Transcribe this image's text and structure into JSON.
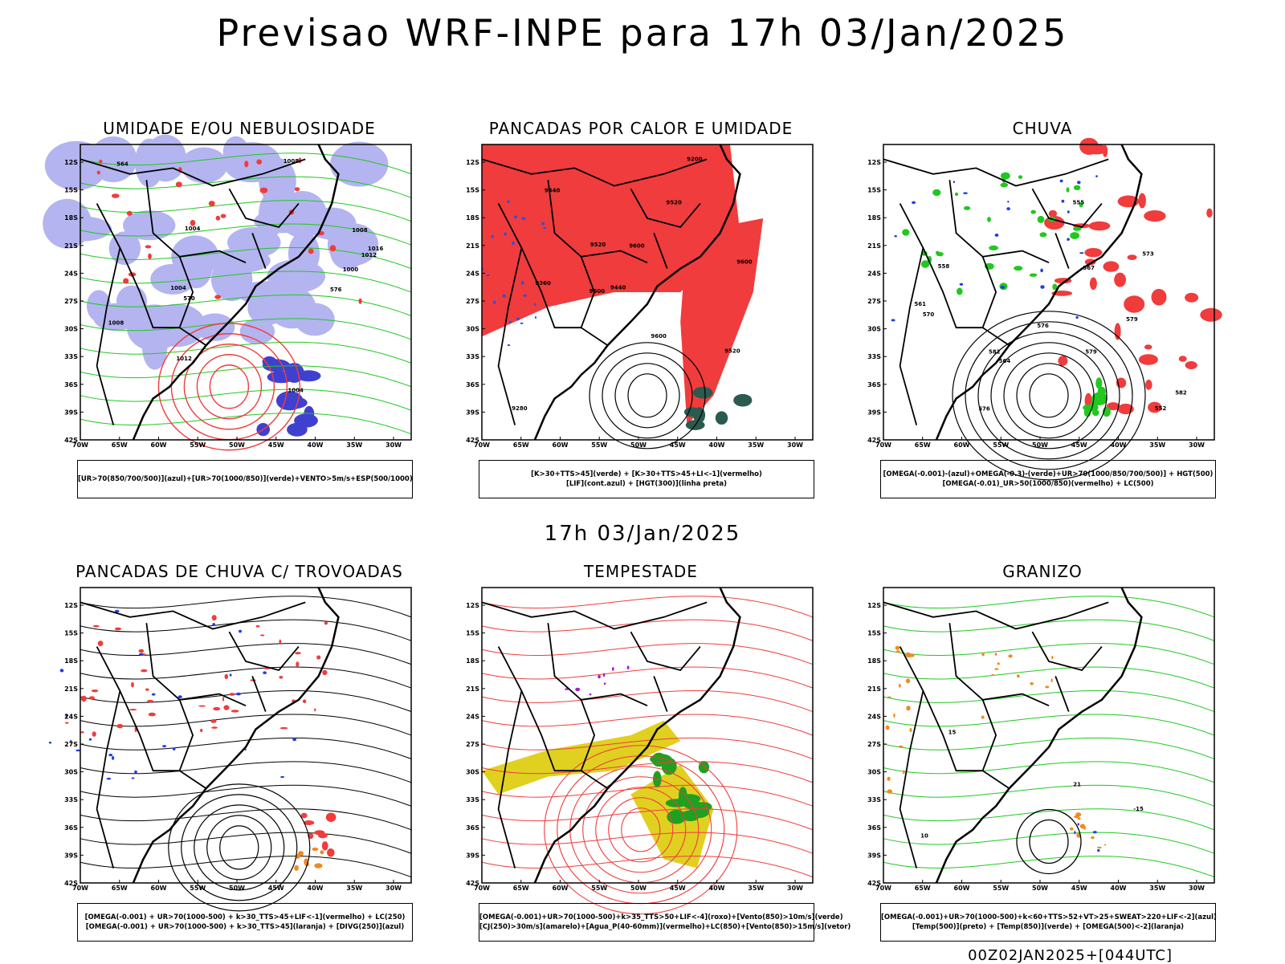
{
  "title": "Previsao WRF-INPE  para 17h 03/Jan/2025",
  "mid_title": "17h 03/Jan/2025",
  "footer": "00Z02JAN2025+[044UTC]",
  "axes": {
    "lat_labels": [
      "12S",
      "15S",
      "18S",
      "21S",
      "24S",
      "27S",
      "30S",
      "33S",
      "36S",
      "39S",
      "42S"
    ],
    "lon_labels": [
      "70W",
      "65W",
      "60W",
      "55W",
      "50W",
      "45W",
      "40W",
      "35W",
      "30W"
    ]
  },
  "panels": [
    {
      "title": "UMIDADE E/OU NEBULOSIDADE",
      "legend": [
        "[UR>70(850/700/500)](azul)+[UR>70(1000/850)](verde)+VENTO>5m/s+ESP(500/1000)"
      ],
      "contour_labels": [
        "1008",
        "1004",
        "1008",
        "1012",
        "1004",
        "1008",
        "1016",
        "1012",
        "576",
        "570",
        "564",
        "1000",
        "1004"
      ],
      "fill_colors": [
        "#b4b4f0",
        "#4040d0",
        "#20c820",
        "#f03c3c"
      ]
    },
    {
      "title": "PANCADAS POR CALOR E UMIDADE",
      "legend": [
        "[K>30+TTS>45](verde)  +  [K>30+TTS>45+LI<-1](vermelho)",
        "[LIF](cont.azul)  +  [HGT(300)](linha preta)"
      ],
      "contour_labels": [
        "9600",
        "9600",
        "9600",
        "9600",
        "9520",
        "9520",
        "9440",
        "9360",
        "9280",
        "9200",
        "9520",
        "9440"
      ],
      "fill_colors": [
        "#f03c3c",
        "#2a5a50",
        "#3050e0"
      ]
    },
    {
      "title": "CHUVA",
      "legend": [
        "[OMEGA(-0.001)-(azul)+OMEGA(-0.3)-(verde)+UR>70(1000/850/700/500)]  +  HGT(500)",
        "[OMEGA(-0.01)_UR>50(1000/850)(vermelho)  +  LC(500)"
      ],
      "contour_labels": [
        "582",
        "579",
        "579",
        "576",
        "573",
        "570",
        "567",
        "564",
        "561",
        "558",
        "555",
        "552",
        "576",
        "582"
      ],
      "fill_colors": [
        "#f03c3c",
        "#20c820",
        "#2040e0"
      ]
    },
    {
      "title": "PANCADAS DE CHUVA C/ TROVOADAS",
      "legend": [
        "[OMEGA(-0.001) + UR>70(1000-500) + k>30_TTS>45+LIF<-1](vermelho) + LC(250)",
        "[OMEGA(-0.001) + UR>70(1000-500) + k>30_TTS>45](laranja) + [DIVG(250)](azul)"
      ],
      "fill_colors": [
        "#f03c3c",
        "#f08a20",
        "#2040e0"
      ]
    },
    {
      "title": "TEMPESTADE",
      "legend": [
        "[OMEGA(-0.001)+UR>70(1000-500)+k>35_TTS>50+LIF<-4](roxo)+[Vento(850)>10m/s](verde)",
        "[CJ(250)>30m/s](amarelo)+[Agua_P(40-60mm)](vermelho)+LC(850)+[Vento(850)>15m/s](vetor)"
      ],
      "fill_colors": [
        "#e0d020",
        "#20a020",
        "#f03c3c",
        "#a020c0"
      ]
    },
    {
      "title": "GRANIZO",
      "legend": [
        "[OMEGA(-0.001)+UR>70(1000-500)+k<60+TTS>52+VT>25+SWEAT>220+LIF<-2](azul)",
        "[Temp(500)](preto)  +  [Temp(850)](verde)  +  [OMEGA(500)<-2](laranja)"
      ],
      "contour_labels": [
        "-15",
        "10",
        "15",
        "21"
      ],
      "fill_colors": [
        "#20c820",
        "#f08a20",
        "#2040e0"
      ]
    }
  ]
}
